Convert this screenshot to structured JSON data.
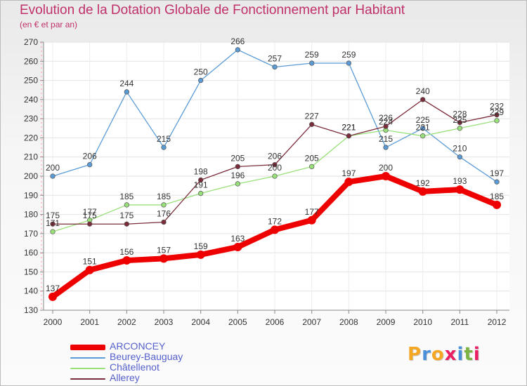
{
  "title": "Evolution de la Dotation Globale de Fonctionnement par Habitant",
  "subtitle": "(en € et par an)",
  "logo": {
    "text": "Proxiti",
    "colors": [
      "#f5a623",
      "#4a90d9",
      "#f5a623",
      "#e91e63",
      "#4a90d9",
      "#7cb342",
      "#e91e63"
    ]
  },
  "chart_data": {
    "type": "line",
    "title": "Evolution de la Dotation Globale de Fonctionnement par Habitant",
    "subtitle": "(en € et par an)",
    "x": [
      "2000",
      "2001",
      "2002",
      "2003",
      "2004",
      "2005",
      "2006",
      "2007",
      "2008",
      "2009",
      "2010",
      "2011",
      "2012"
    ],
    "ylim": [
      130,
      270
    ],
    "yticks": [
      130,
      140,
      150,
      160,
      170,
      180,
      190,
      200,
      210,
      220,
      230,
      240,
      250,
      260,
      270
    ],
    "grid": true,
    "legend": "bottom-left",
    "series": [
      {
        "name": "Beurey-Bauguay",
        "color": "#5b9bd5",
        "values": [
          200,
          206,
          244,
          215,
          250,
          266,
          257,
          259,
          259,
          215,
          225,
          210,
          197
        ]
      },
      {
        "name": "Châtellenot",
        "color": "#99e07a",
        "values": [
          171,
          177,
          185,
          185,
          191,
          196,
          200,
          205,
          221,
          224,
          221,
          225,
          229
        ]
      },
      {
        "name": "Allerey",
        "color": "#7b2c3a",
        "values": [
          175,
          175,
          175,
          176,
          198,
          205,
          206,
          227,
          221,
          226,
          240,
          228,
          232
        ]
      },
      {
        "name": "ARCONCEY",
        "color": "#ee0000",
        "values": [
          137,
          151,
          156,
          157,
          159,
          163,
          172,
          177,
          197,
          200,
          192,
          193,
          185
        ]
      }
    ],
    "legend_order": [
      "ARCONCEY",
      "Beurey-Bauguay",
      "Châtellenot",
      "Allerey"
    ]
  }
}
